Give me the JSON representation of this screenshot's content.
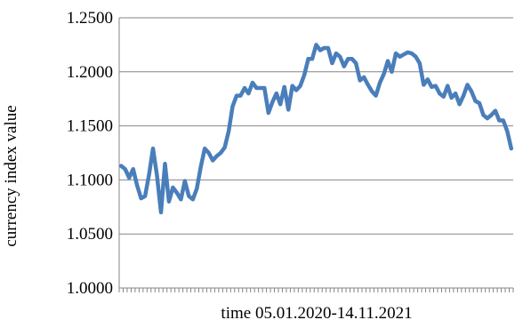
{
  "chart_data": {
    "type": "line",
    "xlabel": "time 05.01.2020-14.11.2021",
    "ylabel": "currency index value",
    "ylim": [
      1.0,
      1.25
    ],
    "yticks": [
      "1.0000",
      "1.0500",
      "1.1000",
      "1.1500",
      "1.2000",
      "1.2500"
    ],
    "grid": "horizontal",
    "line_color": "#4a7ebb",
    "series": [
      {
        "values": [
          1.113,
          1.11,
          1.102,
          1.11,
          1.095,
          1.083,
          1.085,
          1.105,
          1.129,
          1.104,
          1.07,
          1.115,
          1.08,
          1.093,
          1.088,
          1.082,
          1.099,
          1.085,
          1.082,
          1.092,
          1.112,
          1.129,
          1.125,
          1.118,
          1.122,
          1.125,
          1.13,
          1.145,
          1.168,
          1.178,
          1.178,
          1.185,
          1.18,
          1.19,
          1.185,
          1.185,
          1.185,
          1.162,
          1.172,
          1.18,
          1.17,
          1.186,
          1.165,
          1.187,
          1.183,
          1.187,
          1.197,
          1.212,
          1.212,
          1.225,
          1.22,
          1.222,
          1.222,
          1.208,
          1.217,
          1.214,
          1.205,
          1.212,
          1.212,
          1.208,
          1.192,
          1.195,
          1.188,
          1.182,
          1.178,
          1.19,
          1.198,
          1.21,
          1.2,
          1.217,
          1.214,
          1.216,
          1.218,
          1.217,
          1.214,
          1.208,
          1.188,
          1.193,
          1.186,
          1.187,
          1.18,
          1.177,
          1.187,
          1.176,
          1.18,
          1.17,
          1.178,
          1.188,
          1.182,
          1.173,
          1.171,
          1.16,
          1.157,
          1.16,
          1.164,
          1.155,
          1.155,
          1.145,
          1.129
        ]
      }
    ]
  }
}
